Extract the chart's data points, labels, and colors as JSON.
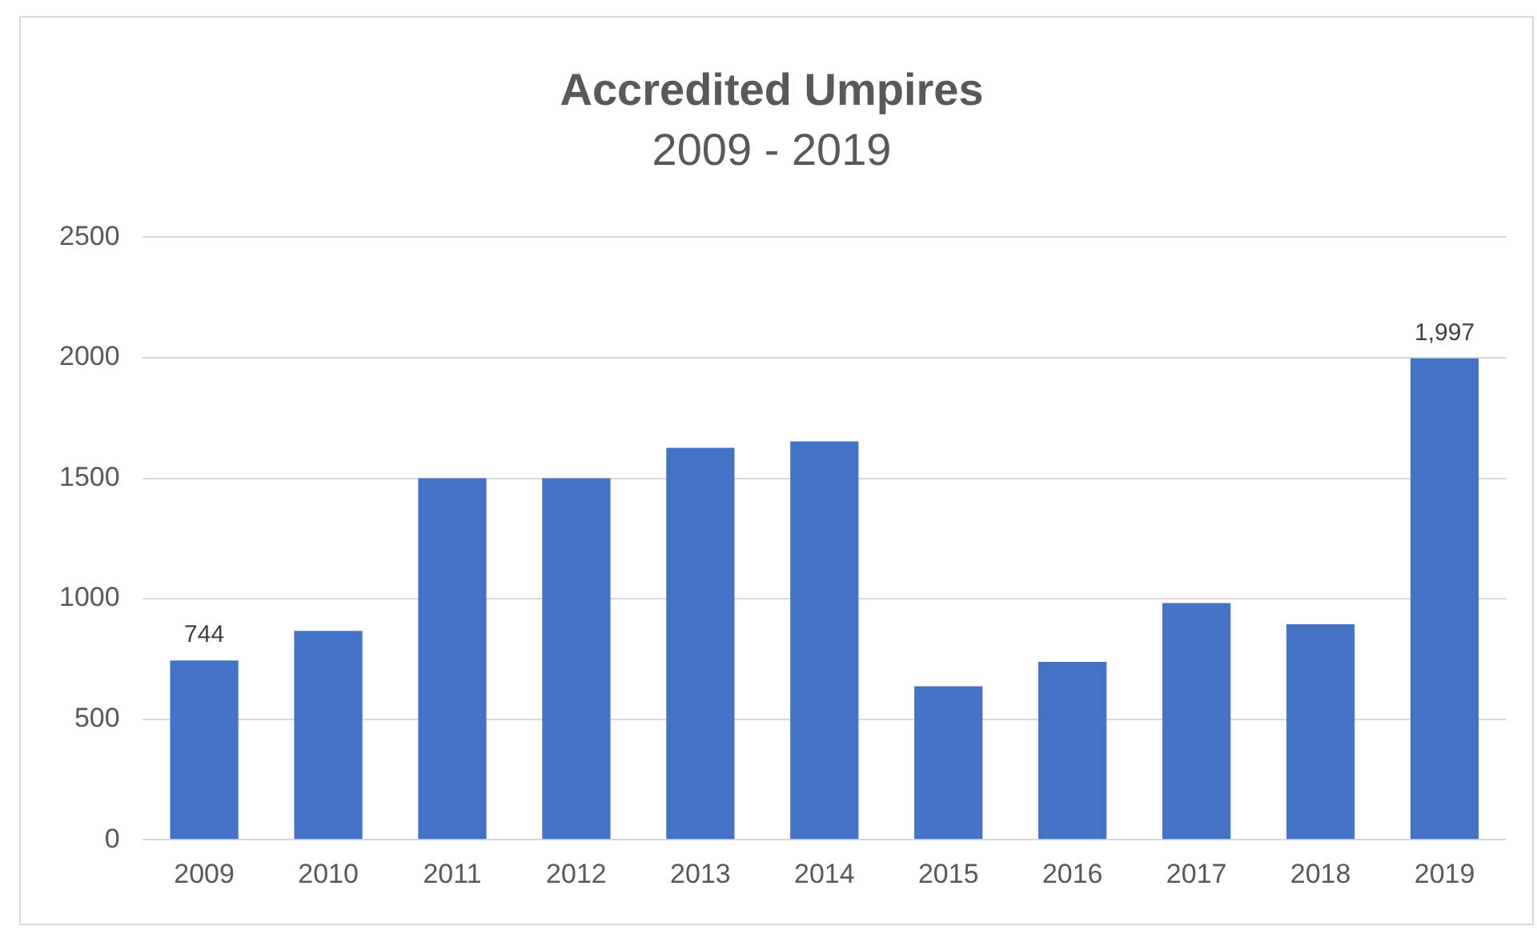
{
  "chart_data": {
    "type": "bar",
    "title": "Accredited Umpires",
    "subtitle": "2009 - 2019",
    "categories": [
      "2009",
      "2010",
      "2011",
      "2012",
      "2013",
      "2014",
      "2015",
      "2016",
      "2017",
      "2018",
      "2019"
    ],
    "values": [
      744,
      867,
      1500,
      1500,
      1626,
      1653,
      637,
      738,
      982,
      894,
      1997
    ],
    "value_labels": [
      "744",
      null,
      null,
      null,
      null,
      null,
      null,
      null,
      null,
      null,
      "1,997"
    ],
    "color": "#4472c4",
    "ylim": [
      0,
      2500
    ],
    "yticks": [
      0,
      500,
      1000,
      1500,
      2000,
      2500
    ],
    "grid": "y"
  }
}
